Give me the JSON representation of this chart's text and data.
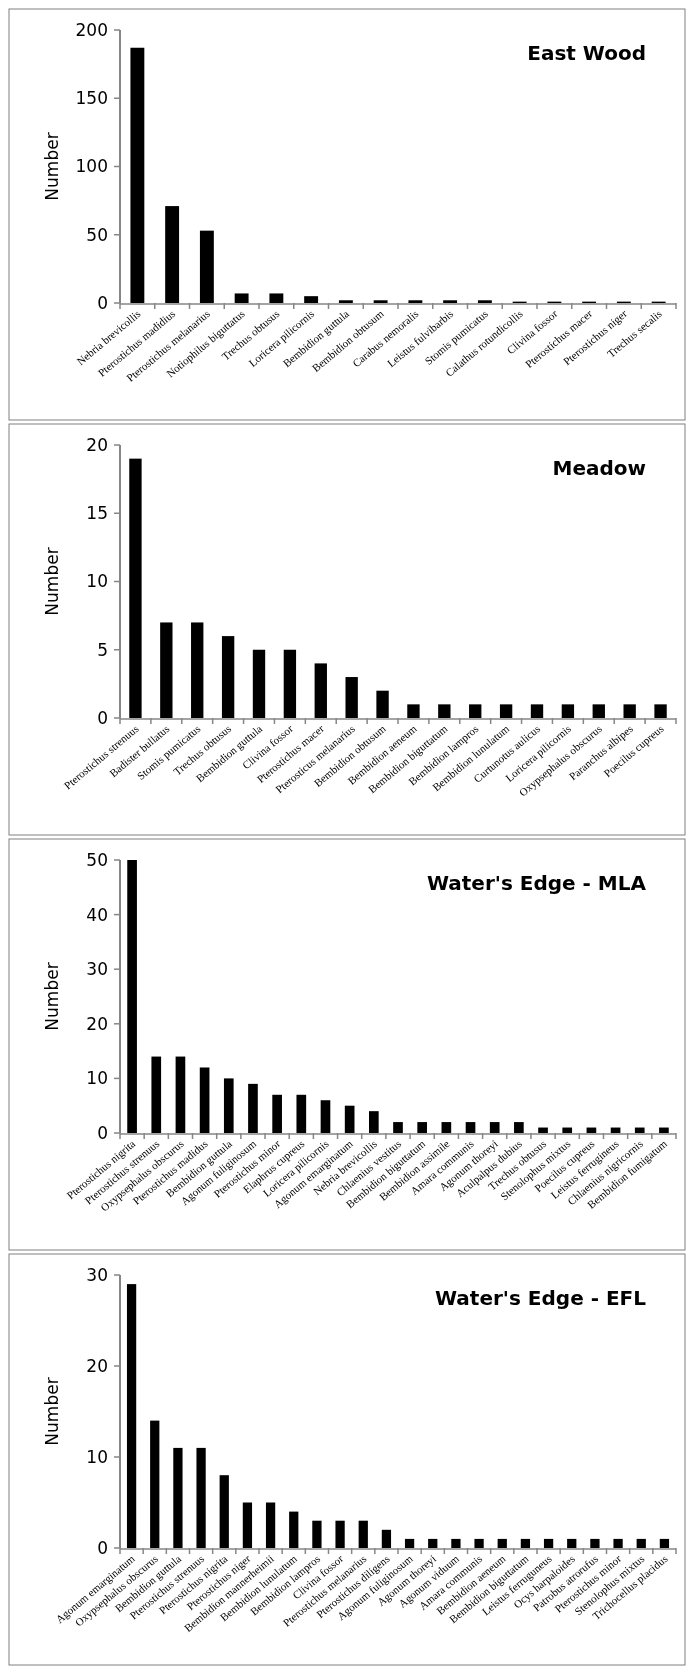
{
  "chart_data": [
    {
      "type": "bar",
      "title": "East Wood",
      "ylabel": "Number",
      "color": "#000000",
      "ylim": [
        0,
        200
      ],
      "yticks": [
        0,
        50,
        100,
        150,
        200
      ],
      "categories": [
        "Nebria brevicollis",
        "Pterostichus madidius",
        "Pterostichus melanarius",
        "Notiophilus biguttatus",
        "Trechus obtusus",
        "Loricera pilicornis",
        "Bembidion guttula",
        "Bembidion obtusum",
        "Carabus nemoralis",
        "Leistus fulvibarbis",
        "Stomis pumicatus",
        "Calathus rotundicollis",
        "Clivina fossor",
        "Pterostichus macer",
        "Pterostichus niger",
        "Trechus secalis"
      ],
      "values": [
        187,
        71,
        53,
        7,
        7,
        5,
        2,
        2,
        2,
        2,
        2,
        1,
        1,
        1,
        1,
        1
      ]
    },
    {
      "type": "bar",
      "title": "Meadow",
      "ylabel": "Number",
      "color": "#000000",
      "ylim": [
        0,
        20
      ],
      "yticks": [
        0,
        5,
        10,
        15,
        20
      ],
      "categories": [
        "Pterostichus strenuus",
        "Badister bullatus",
        "Stomis pumicatus",
        "Trechus obtusus",
        "Bembidion guttula",
        "Clivina fossor",
        "Pterostichus macer",
        "Pterosticus melanarius",
        "Bembidion obtusum",
        "Bembidion aeneum",
        "Bembidion biguttatum",
        "Bembidion lampros",
        "Bembidion lunulatum",
        "Curtunotus aulicus",
        "Loricera pilicornis",
        "Oxypsephalus obscurus",
        "Paranchus albipes",
        "Poecilus cupreus"
      ],
      "values": [
        19,
        7,
        7,
        6,
        5,
        5,
        4,
        3,
        2,
        1,
        1,
        1,
        1,
        1,
        1,
        1,
        1,
        1
      ]
    },
    {
      "type": "bar",
      "title": "Water's Edge - MLA",
      "ylabel": "Number",
      "color": "#000000",
      "ylim": [
        0,
        50
      ],
      "yticks": [
        0,
        10,
        20,
        30,
        40,
        50
      ],
      "categories": [
        "Pterostichus nigrita",
        "Pterostichus strenuus",
        "Oxypsephalus obscurus",
        "Pterostichus madidus",
        "Bembidion guttula",
        "Agonum fuliginosum",
        "Pterostichus minor",
        "Elaphrus cupreus",
        "Loricera pilicornis",
        "Agonum emarginatum",
        "Nebria brevicollis",
        "Chlaenius vestitus",
        "Bembidion biguttatum",
        "Bembidion assimile",
        "Amara communis",
        "Agonum thoreyi",
        "Aculpalpus dubius",
        "Trechus obtusus",
        "Stenolophus mixtus",
        "Poecilus cupreus",
        "Leistus ferrugineus",
        "Chlaenius nigricornis",
        "Bembidion fumigatum"
      ],
      "values": [
        50,
        14,
        14,
        12,
        10,
        9,
        7,
        7,
        6,
        5,
        4,
        2,
        2,
        2,
        2,
        2,
        2,
        1,
        1,
        1,
        1,
        1,
        1
      ]
    },
    {
      "type": "bar",
      "title": "Water's Edge - EFL",
      "ylabel": "Number",
      "color": "#000000",
      "ylim": [
        0,
        30
      ],
      "yticks": [
        0,
        10,
        20,
        30
      ],
      "categories": [
        "Agonum emarginatum",
        "Oxypsephalus obscurus",
        "Bembidion guttula",
        "Pterostichus strenuus",
        "Pterostichus nigrita",
        "Pterostichus niger",
        "Bembidion mannerheimii",
        "Bembidion lunulatum",
        "Bembidion lampros",
        "Clivina fossor",
        "Pterostichus melanarius",
        "Pterostichus diligens",
        "Agonum fuliginosum",
        "Agonum thoreyi",
        "Agonum viduum",
        "Amara communis",
        "Bembidion aeneum",
        "Bembidion biguttatum",
        "Leistus ferruguneus",
        "Ocys harpaloides",
        "Patrobus atrorufus",
        "Pterostichus minor",
        "Stenolophus mixtus",
        "Trichocellus placidus"
      ],
      "values": [
        29,
        14,
        11,
        11,
        8,
        5,
        5,
        4,
        3,
        3,
        3,
        2,
        1,
        1,
        1,
        1,
        1,
        1,
        1,
        1,
        1,
        1,
        1,
        1
      ]
    }
  ]
}
